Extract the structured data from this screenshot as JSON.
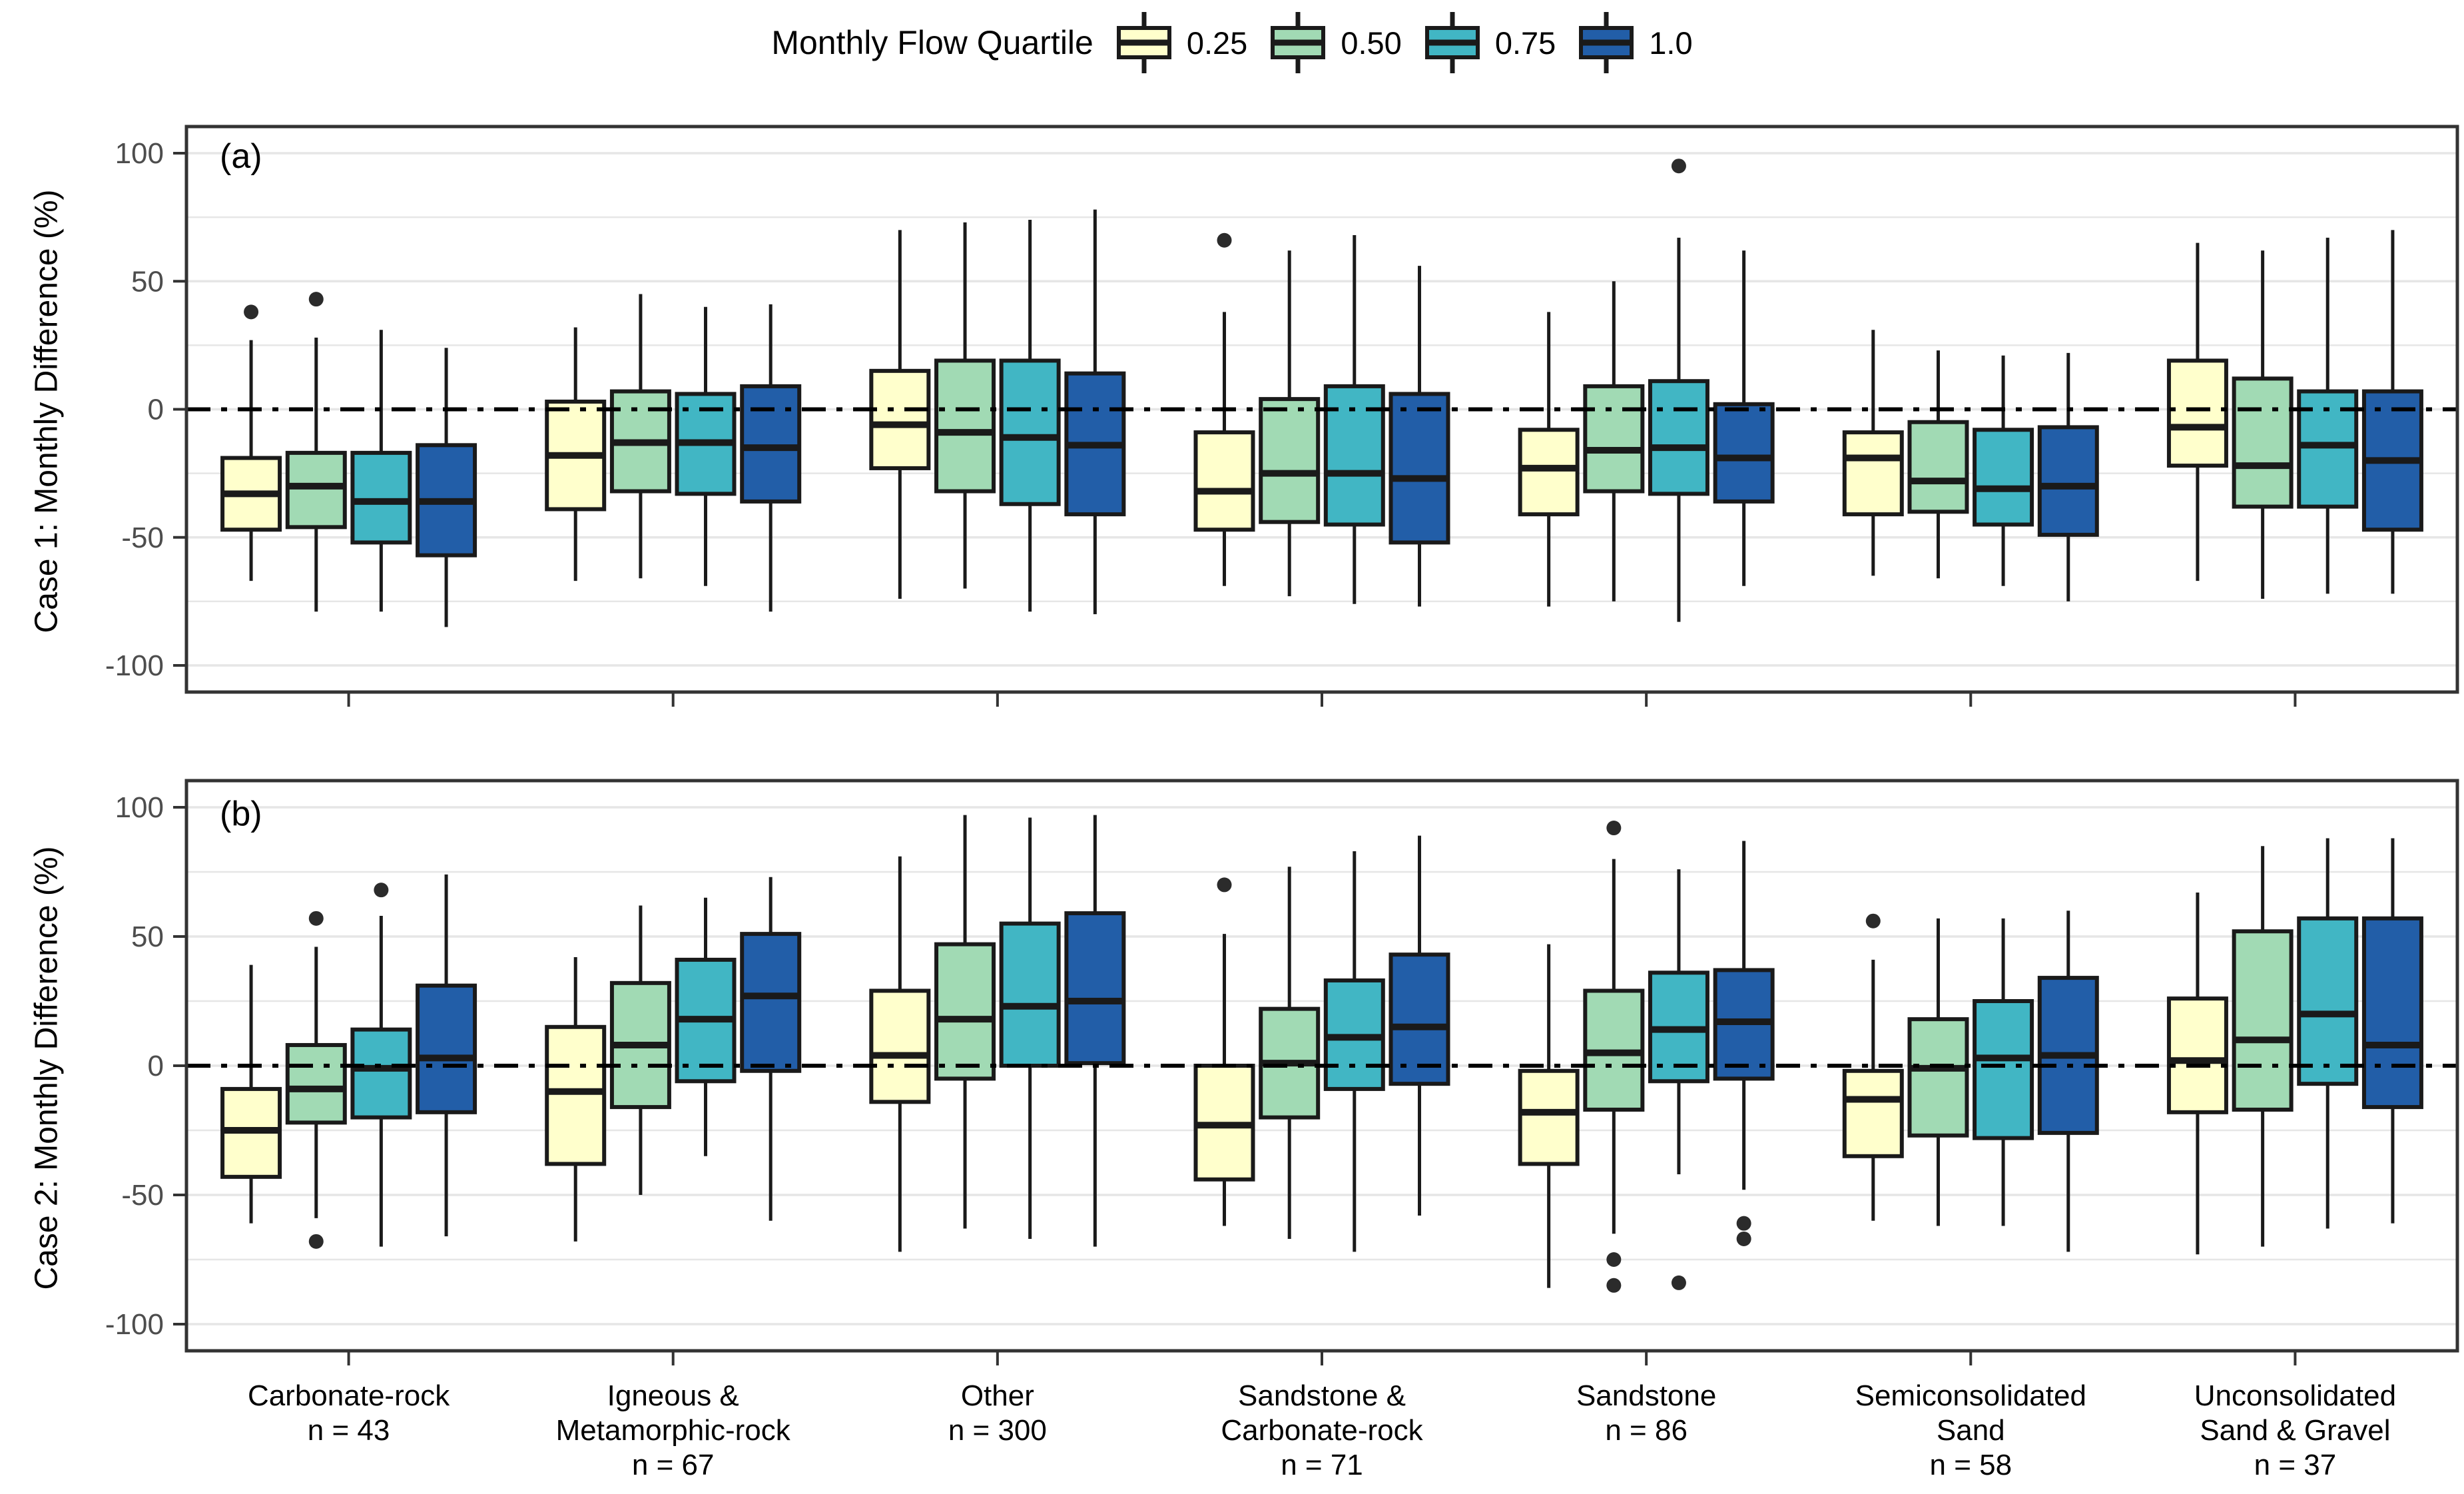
{
  "legend": {
    "title": "Monthly Flow Quartile",
    "items": [
      {
        "label": "0.25",
        "color": "#FFFFCC"
      },
      {
        "label": "0.50",
        "color": "#A1DAB4"
      },
      {
        "label": "0.75",
        "color": "#41B6C4"
      },
      {
        "label": "1.0",
        "color": "#225EA8"
      }
    ]
  },
  "colors": {
    "box_stroke": "#1a1a1a",
    "panel_border": "#333333",
    "grid": "#e6e6e6",
    "tick_text": "#4d4d4d",
    "category_text": "#000000",
    "zero_line": "#000000",
    "outlier": "#2b2b2b"
  },
  "n_label_prefix": "n = ",
  "chart_data": [
    {
      "type": "boxplot",
      "panel_label": "(a)",
      "ylabel": "Case 1: Monthly Difference (%)",
      "ylim": [
        -110,
        110
      ],
      "yticks": [
        100,
        50,
        0,
        -50,
        -100
      ],
      "grid_step": 25,
      "zero_line": "dashdot",
      "legend_position": "top",
      "categories": [
        [
          "Carbonate-rock"
        ],
        [
          "Igneous &",
          "Metamorphic-rock"
        ],
        [
          "Other"
        ],
        [
          "Sandstone &",
          "Carbonate-rock"
        ],
        [
          "Sandstone"
        ],
        [
          "Semiconsolidated",
          "Sand"
        ],
        [
          "Unconsolidated",
          "Sand & Gravel"
        ]
      ],
      "n_values": [
        43,
        67,
        300,
        71,
        86,
        58,
        37
      ],
      "series": [
        {
          "name": "0.25",
          "color": "#FFFFCC",
          "boxes": [
            {
              "lo": -67,
              "q1": -47,
              "med": -33,
              "q3": -19,
              "hi": 27,
              "out": [
                38
              ]
            },
            {
              "lo": -67,
              "q1": -39,
              "med": -18,
              "q3": 3,
              "hi": 32,
              "out": []
            },
            {
              "lo": -74,
              "q1": -23,
              "med": -6,
              "q3": 15,
              "hi": 70,
              "out": []
            },
            {
              "lo": -69,
              "q1": -47,
              "med": -32,
              "q3": -9,
              "hi": 38,
              "out": [
                66
              ]
            },
            {
              "lo": -77,
              "q1": -41,
              "med": -23,
              "q3": -8,
              "hi": 38,
              "out": []
            },
            {
              "lo": -65,
              "q1": -41,
              "med": -19,
              "q3": -9,
              "hi": 31,
              "out": []
            },
            {
              "lo": -67,
              "q1": -22,
              "med": -7,
              "q3": 19,
              "hi": 65,
              "out": []
            }
          ]
        },
        {
          "name": "0.50",
          "color": "#A1DAB4",
          "boxes": [
            {
              "lo": -79,
              "q1": -46,
              "med": -30,
              "q3": -17,
              "hi": 28,
              "out": [
                43
              ]
            },
            {
              "lo": -66,
              "q1": -32,
              "med": -13,
              "q3": 7,
              "hi": 45,
              "out": []
            },
            {
              "lo": -70,
              "q1": -32,
              "med": -9,
              "q3": 19,
              "hi": 73,
              "out": []
            },
            {
              "lo": -73,
              "q1": -44,
              "med": -25,
              "q3": 4,
              "hi": 62,
              "out": []
            },
            {
              "lo": -75,
              "q1": -32,
              "med": -16,
              "q3": 9,
              "hi": 50,
              "out": []
            },
            {
              "lo": -66,
              "q1": -40,
              "med": -28,
              "q3": -5,
              "hi": 23,
              "out": []
            },
            {
              "lo": -74,
              "q1": -38,
              "med": -22,
              "q3": 12,
              "hi": 62,
              "out": []
            }
          ]
        },
        {
          "name": "0.75",
          "color": "#41B6C4",
          "boxes": [
            {
              "lo": -79,
              "q1": -52,
              "med": -36,
              "q3": -17,
              "hi": 31,
              "out": []
            },
            {
              "lo": -69,
              "q1": -33,
              "med": -13,
              "q3": 6,
              "hi": 40,
              "out": []
            },
            {
              "lo": -79,
              "q1": -37,
              "med": -11,
              "q3": 19,
              "hi": 74,
              "out": []
            },
            {
              "lo": -76,
              "q1": -45,
              "med": -25,
              "q3": 9,
              "hi": 68,
              "out": []
            },
            {
              "lo": -83,
              "q1": -33,
              "med": -15,
              "q3": 11,
              "hi": 67,
              "out": [
                95
              ]
            },
            {
              "lo": -69,
              "q1": -45,
              "med": -31,
              "q3": -8,
              "hi": 21,
              "out": []
            },
            {
              "lo": -72,
              "q1": -38,
              "med": -14,
              "q3": 7,
              "hi": 67,
              "out": []
            }
          ]
        },
        {
          "name": "1.0",
          "color": "#225EA8",
          "boxes": [
            {
              "lo": -85,
              "q1": -57,
              "med": -36,
              "q3": -14,
              "hi": 24,
              "out": []
            },
            {
              "lo": -79,
              "q1": -36,
              "med": -15,
              "q3": 9,
              "hi": 41,
              "out": []
            },
            {
              "lo": -80,
              "q1": -41,
              "med": -14,
              "q3": 14,
              "hi": 78,
              "out": []
            },
            {
              "lo": -77,
              "q1": -52,
              "med": -27,
              "q3": 6,
              "hi": 56,
              "out": []
            },
            {
              "lo": -69,
              "q1": -36,
              "med": -19,
              "q3": 2,
              "hi": 62,
              "out": []
            },
            {
              "lo": -75,
              "q1": -49,
              "med": -30,
              "q3": -7,
              "hi": 22,
              "out": []
            },
            {
              "lo": -72,
              "q1": -47,
              "med": -20,
              "q3": 7,
              "hi": 70,
              "out": []
            }
          ]
        }
      ]
    },
    {
      "type": "boxplot",
      "panel_label": "(b)",
      "ylabel": "Case 2: Monthly Difference (%)",
      "ylim": [
        -110,
        110
      ],
      "yticks": [
        100,
        50,
        0,
        -50,
        -100
      ],
      "grid_step": 25,
      "zero_line": "dashdot",
      "categories": [
        [
          "Carbonate-rock"
        ],
        [
          "Igneous &",
          "Metamorphic-rock"
        ],
        [
          "Other"
        ],
        [
          "Sandstone &",
          "Carbonate-rock"
        ],
        [
          "Sandstone"
        ],
        [
          "Semiconsolidated",
          "Sand"
        ],
        [
          "Unconsolidated",
          "Sand & Gravel"
        ]
      ],
      "n_values": [
        43,
        67,
        300,
        71,
        86,
        58,
        37
      ],
      "series": [
        {
          "name": "0.25",
          "color": "#FFFFCC",
          "boxes": [
            {
              "lo": -61,
              "q1": -43,
              "med": -25,
              "q3": -9,
              "hi": 39,
              "out": []
            },
            {
              "lo": -68,
              "q1": -38,
              "med": -10,
              "q3": 15,
              "hi": 42,
              "out": []
            },
            {
              "lo": -72,
              "q1": -14,
              "med": 4,
              "q3": 29,
              "hi": 81,
              "out": []
            },
            {
              "lo": -62,
              "q1": -44,
              "med": -23,
              "q3": 0,
              "hi": 51,
              "out": [
                70
              ]
            },
            {
              "lo": -86,
              "q1": -38,
              "med": -18,
              "q3": -2,
              "hi": 47,
              "out": []
            },
            {
              "lo": -60,
              "q1": -35,
              "med": -13,
              "q3": -2,
              "hi": 41,
              "out": [
                56
              ]
            },
            {
              "lo": -73,
              "q1": -18,
              "med": 2,
              "q3": 26,
              "hi": 67,
              "out": []
            }
          ]
        },
        {
          "name": "0.50",
          "color": "#A1DAB4",
          "boxes": [
            {
              "lo": -59,
              "q1": -22,
              "med": -9,
              "q3": 8,
              "hi": 46,
              "out": [
                57,
                -68
              ]
            },
            {
              "lo": -50,
              "q1": -16,
              "med": 8,
              "q3": 32,
              "hi": 62,
              "out": []
            },
            {
              "lo": -63,
              "q1": -5,
              "med": 18,
              "q3": 47,
              "hi": 97,
              "out": []
            },
            {
              "lo": -67,
              "q1": -20,
              "med": 1,
              "q3": 22,
              "hi": 77,
              "out": []
            },
            {
              "lo": -65,
              "q1": -17,
              "med": 5,
              "q3": 29,
              "hi": 80,
              "out": [
                92,
                -75,
                -85
              ]
            },
            {
              "lo": -62,
              "q1": -27,
              "med": -1,
              "q3": 18,
              "hi": 57,
              "out": []
            },
            {
              "lo": -70,
              "q1": -17,
              "med": 10,
              "q3": 52,
              "hi": 85,
              "out": []
            }
          ]
        },
        {
          "name": "0.75",
          "color": "#41B6C4",
          "boxes": [
            {
              "lo": -70,
              "q1": -20,
              "med": -1,
              "q3": 14,
              "hi": 58,
              "out": [
                68
              ]
            },
            {
              "lo": -35,
              "q1": -6,
              "med": 18,
              "q3": 41,
              "hi": 65,
              "out": []
            },
            {
              "lo": -67,
              "q1": 0,
              "med": 23,
              "q3": 55,
              "hi": 96,
              "out": []
            },
            {
              "lo": -72,
              "q1": -9,
              "med": 11,
              "q3": 33,
              "hi": 83,
              "out": []
            },
            {
              "lo": -42,
              "q1": -6,
              "med": 14,
              "q3": 36,
              "hi": 76,
              "out": [
                -84
              ]
            },
            {
              "lo": -62,
              "q1": -28,
              "med": 3,
              "q3": 25,
              "hi": 57,
              "out": []
            },
            {
              "lo": -63,
              "q1": -7,
              "med": 20,
              "q3": 57,
              "hi": 88,
              "out": []
            }
          ]
        },
        {
          "name": "1.0",
          "color": "#225EA8",
          "boxes": [
            {
              "lo": -66,
              "q1": -18,
              "med": 3,
              "q3": 31,
              "hi": 74,
              "out": []
            },
            {
              "lo": -60,
              "q1": -2,
              "med": 27,
              "q3": 51,
              "hi": 73,
              "out": []
            },
            {
              "lo": -70,
              "q1": 1,
              "med": 25,
              "q3": 59,
              "hi": 97,
              "out": []
            },
            {
              "lo": -58,
              "q1": -7,
              "med": 15,
              "q3": 43,
              "hi": 89,
              "out": []
            },
            {
              "lo": -48,
              "q1": -5,
              "med": 17,
              "q3": 37,
              "hi": 87,
              "out": [
                -61,
                -67
              ]
            },
            {
              "lo": -72,
              "q1": -26,
              "med": 4,
              "q3": 34,
              "hi": 60,
              "out": []
            },
            {
              "lo": -61,
              "q1": -16,
              "med": 8,
              "q3": 57,
              "hi": 88,
              "out": []
            }
          ]
        }
      ]
    }
  ]
}
